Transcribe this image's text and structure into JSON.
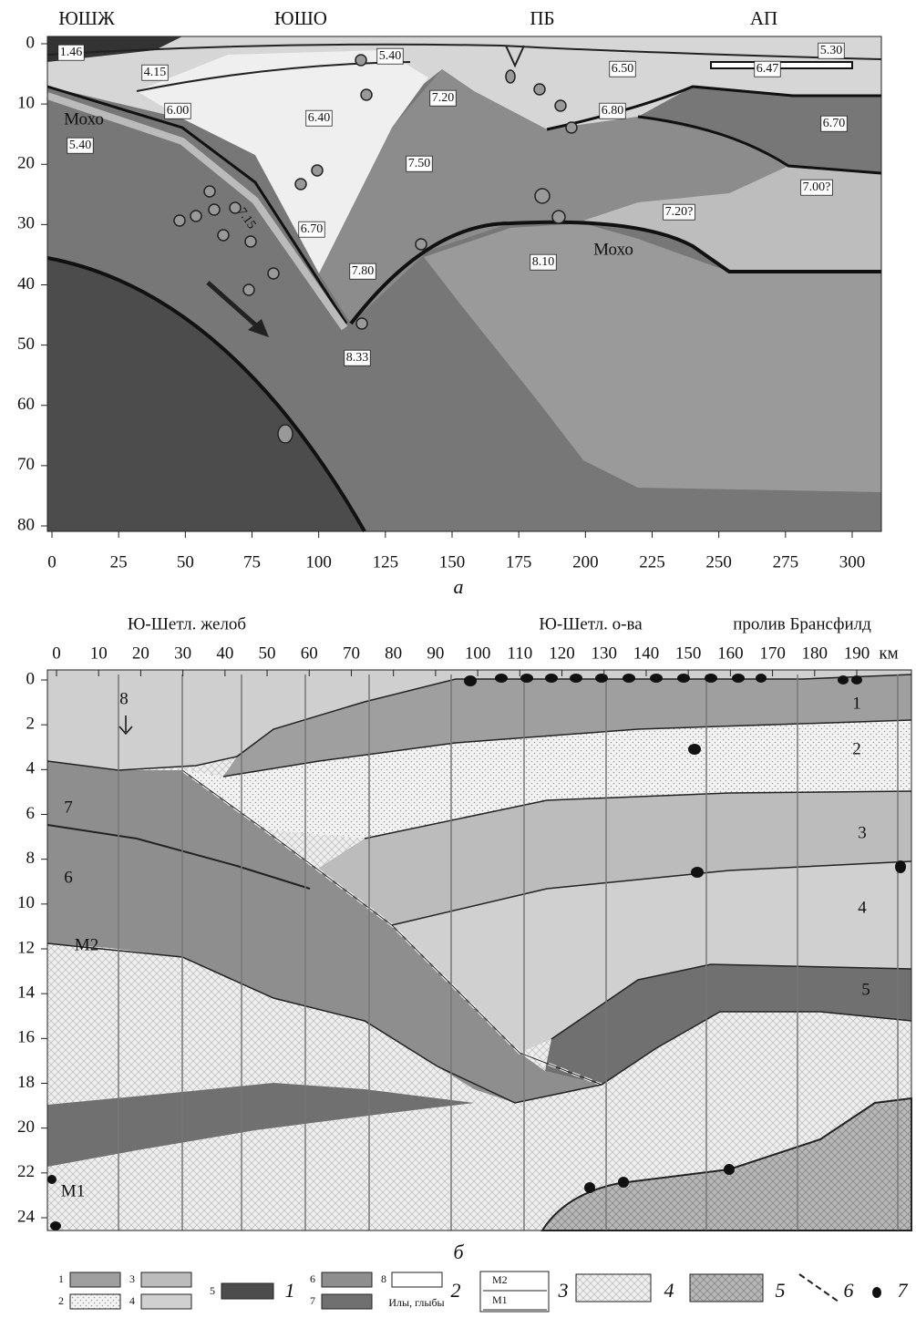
{
  "panel_a": {
    "top_labels": [
      "ЮШЖ",
      "ЮШО",
      "ПБ",
      "АП"
    ],
    "xticks": [
      0,
      25,
      50,
      75,
      100,
      125,
      150,
      175,
      200,
      225,
      250,
      275,
      300
    ],
    "yticks": [
      0,
      10,
      20,
      30,
      40,
      50,
      60,
      70,
      80
    ],
    "labels": [
      "1.46",
      "4.15",
      "5.40",
      "5.30",
      "6.47",
      "6.50",
      "7.20",
      "6.00",
      "6.40",
      "6.80",
      "6.70",
      "Мохо",
      "5.40",
      "7.50",
      "7.00?",
      "7.15",
      "6.70",
      "7.20?",
      "Мохо",
      "7.80",
      "8.10",
      "8.33"
    ],
    "caption": "а"
  },
  "panel_b": {
    "top_labels": [
      "Ю-Шетл. желоб",
      "Ю-Шетл. о-ва",
      "пролив Брансфилд"
    ],
    "xticks": [
      0,
      10,
      20,
      30,
      40,
      50,
      60,
      70,
      80,
      90,
      100,
      110,
      120,
      130,
      140,
      150,
      160,
      170,
      180,
      190
    ],
    "x_unit": "км",
    "yticks": [
      0,
      2,
      4,
      6,
      8,
      10,
      12,
      14,
      16,
      18,
      20,
      22,
      24
    ],
    "layer_labels": [
      "1",
      "2",
      "3",
      "4",
      "5",
      "7",
      "6",
      "M2",
      "M1",
      "8"
    ],
    "caption": "б"
  },
  "legend": {
    "swatch_numbers": [
      "1",
      "2",
      "3",
      "4",
      "5",
      "6",
      "7",
      "8"
    ],
    "mud_label": "Илы, глыбы",
    "moho_labels": [
      "M2",
      "M1"
    ],
    "group_numbers": [
      "1",
      "2",
      "3",
      "4",
      "5",
      "6",
      "7"
    ]
  }
}
